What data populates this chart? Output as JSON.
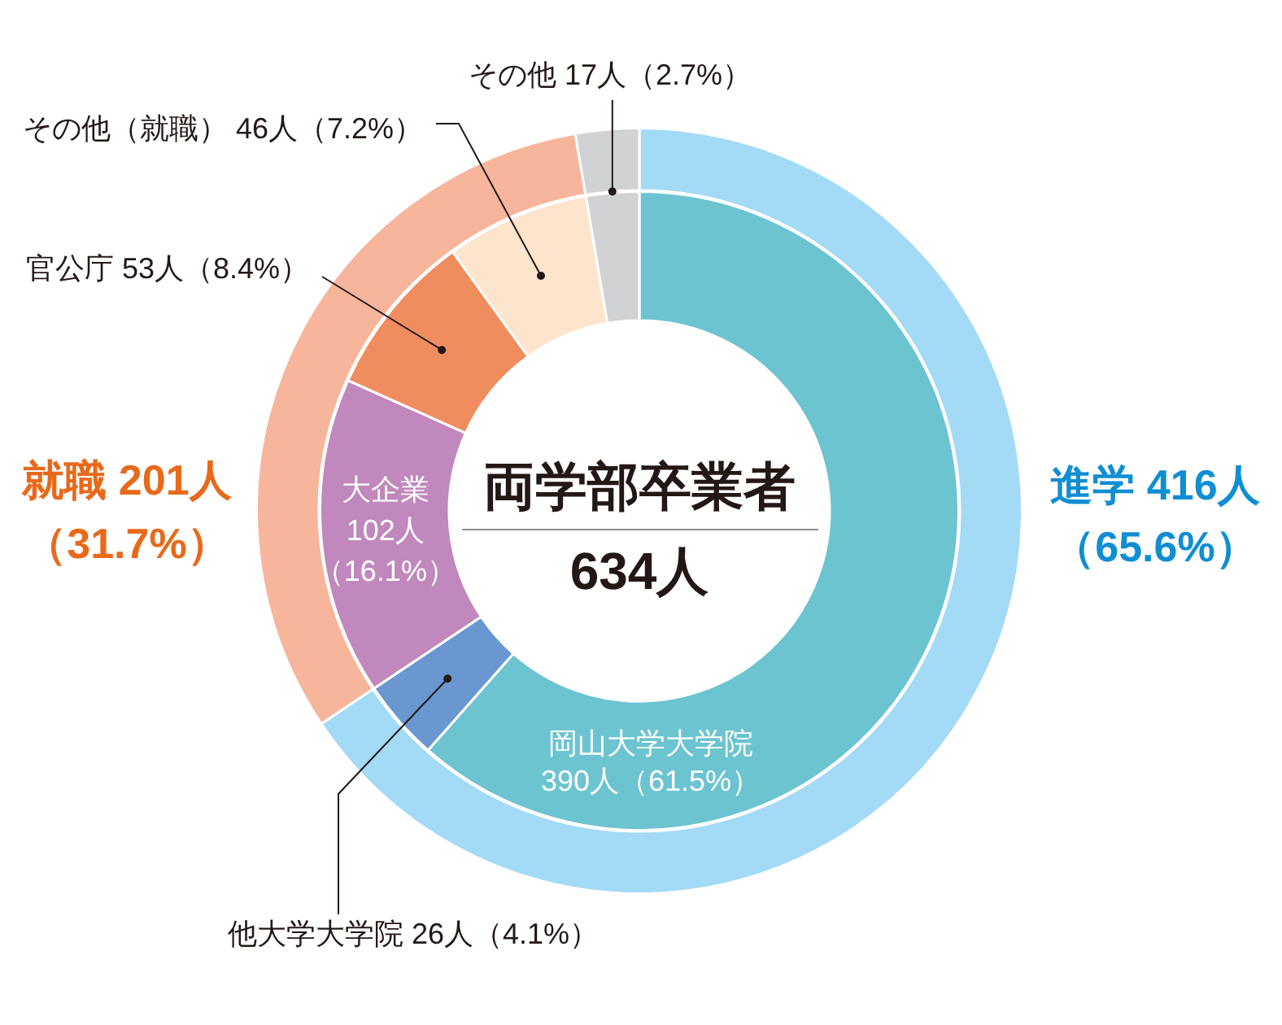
{
  "chart_data": [
    {
      "type": "donut",
      "title": "両学部卒業者",
      "subtitle": "634人",
      "categories": [
        "進学",
        "就職",
        "その他"
      ],
      "values": [
        416,
        201,
        17
      ],
      "colors": [
        "#a3daf6",
        "#f7b59c",
        "#d1d2d4"
      ],
      "value_labels": [
        "416人（65.6%）",
        "201人（31.7%）",
        "17人（2.7%）"
      ]
    },
    {
      "type": "donut",
      "categories": [
        "岡山大学大学院",
        "他大学大学院",
        "大企業",
        "官公庁",
        "その他（就職）",
        null
      ],
      "values": [
        390,
        26,
        102,
        53,
        46,
        17
      ],
      "colors": [
        "#6cc4d0",
        "#6a97cf",
        "#c088bc",
        "#f08d5f",
        "#fde4cd",
        "#d1d2d4"
      ],
      "value_labels": [
        "390人（61.5%）",
        "26人（4.1%）",
        "102人（16.1%）",
        "53人（8.4%）",
        "46人（7.2%）",
        null
      ]
    }
  ]
}
